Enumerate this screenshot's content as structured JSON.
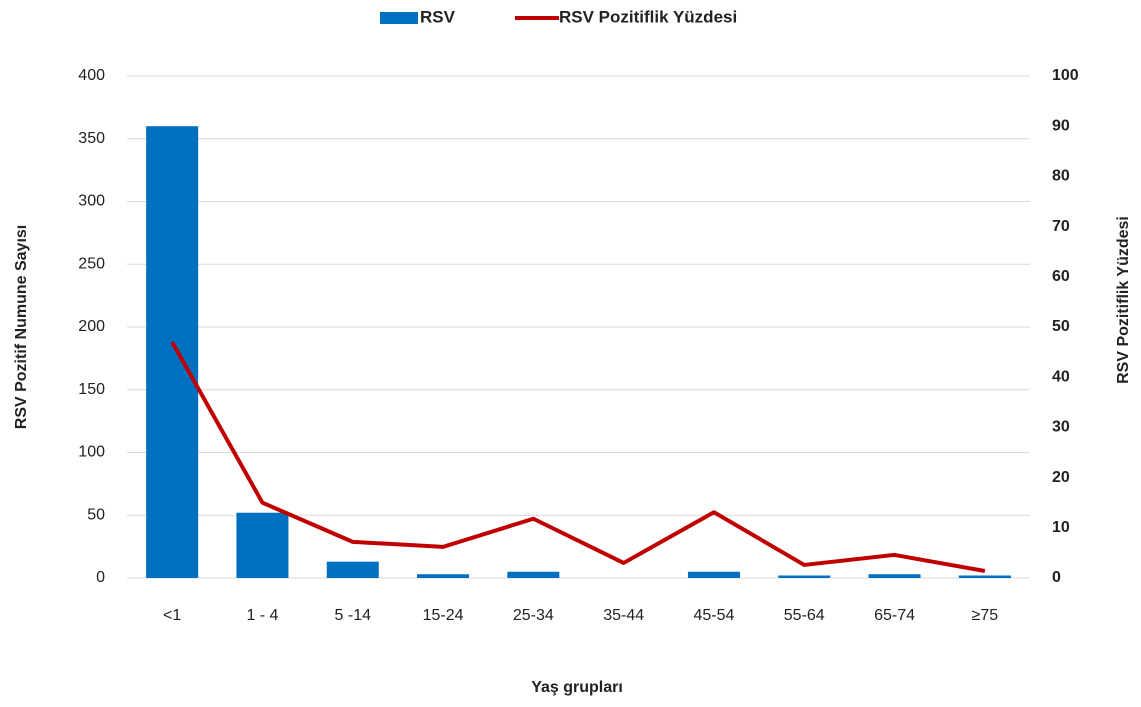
{
  "chart_data": {
    "type": "bar",
    "categories": [
      "<1",
      "1 - 4",
      "5 -14",
      "15-24",
      "25-34",
      "35-44",
      "45-54",
      "55-64",
      "65-74",
      "≥75"
    ],
    "series": [
      {
        "name": "RSV",
        "color": "#0070c0",
        "values": [
          360,
          52,
          13,
          3,
          5,
          0,
          5,
          2,
          3,
          2
        ]
      },
      {
        "name": "RSV Pozitiflik Yüzdesi",
        "color": "#c00000",
        "type": "line",
        "axis": "y2",
        "values": [
          47,
          15,
          7.2,
          6.2,
          11.8,
          3,
          13.1,
          2.6,
          4.6,
          1.4
        ]
      }
    ],
    "ylim": [
      0,
      400
    ],
    "yticks": [
      0,
      50,
      100,
      150,
      200,
      250,
      300,
      350,
      400
    ],
    "y2lim": [
      0,
      100
    ],
    "y2ticks": [
      0,
      10,
      20,
      30,
      40,
      50,
      60,
      70,
      80,
      90,
      100
    ],
    "ylabel": "RSV  Pozitif Numune Sayısı",
    "y2label": "RSV Pozitiflik Yüzdesi",
    "xlabel": "Yaş grupları",
    "grid": true,
    "legend": "top"
  }
}
